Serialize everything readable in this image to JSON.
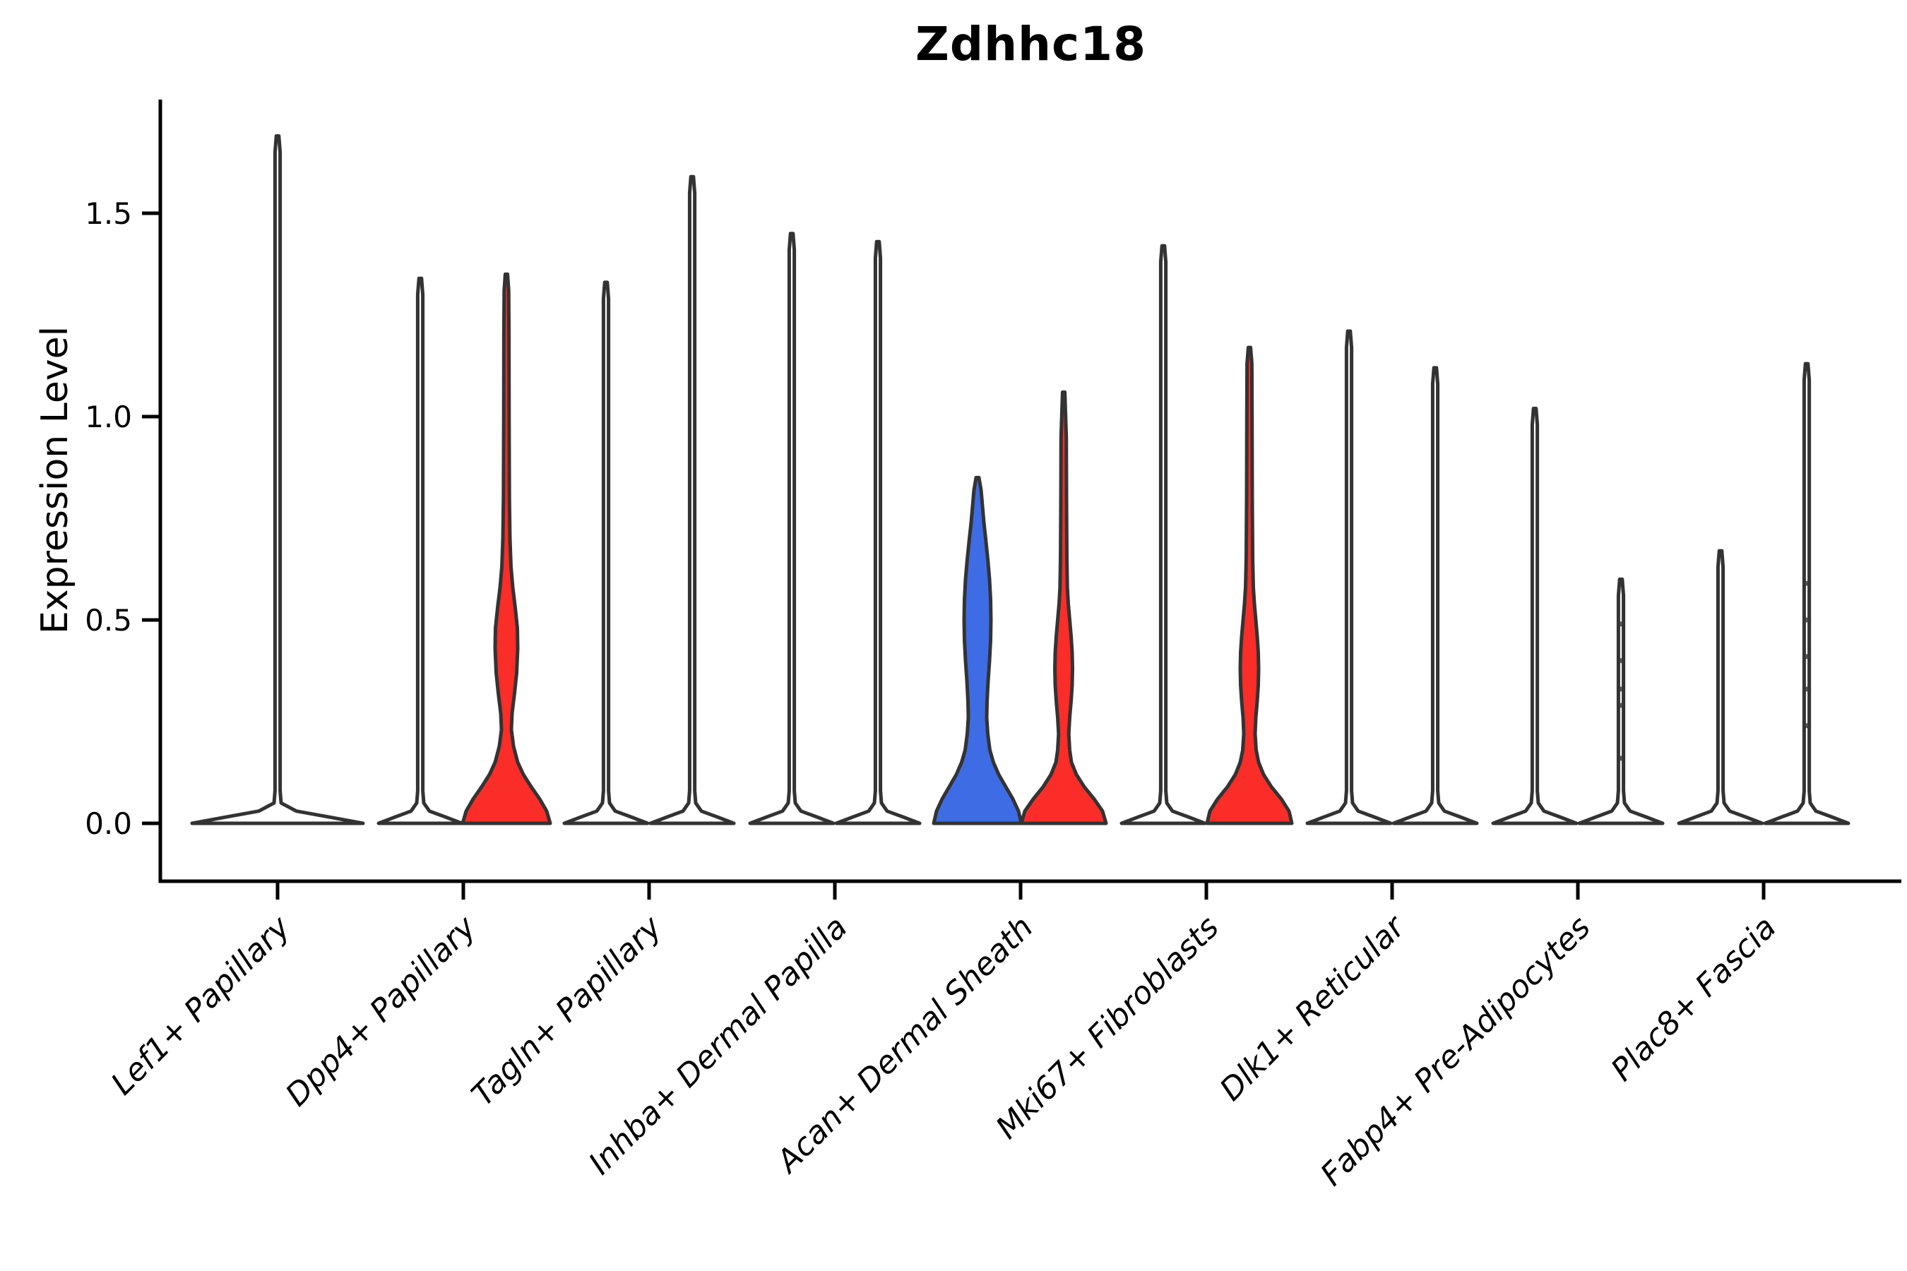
{
  "chart_data": {
    "type": "violin",
    "title": "Zdhhc18",
    "ylabel": "Expression Level",
    "xlabel": "",
    "ylim": [
      -0.14,
      1.78
    ],
    "grid": false,
    "legend": null,
    "yticks": [
      {
        "value": 0.0,
        "label": "0.0"
      },
      {
        "value": 0.5,
        "label": "0.5"
      },
      {
        "value": 1.0,
        "label": "1.0"
      },
      {
        "value": 1.5,
        "label": "1.5"
      }
    ],
    "colors": {
      "highlight_red": "#fa2d28",
      "highlight_blue": "#3e6ce4",
      "violin_outline": "#333333",
      "axis": "#000000",
      "point": "#3a3a3a",
      "white_fill": "#ffffff"
    },
    "categories": [
      {
        "label": "Lef1+ Papillary",
        "violins": [
          {
            "pos": "center",
            "fill": "#ffffff",
            "max": 1.69,
            "kind": "spike",
            "base_half": 121
          }
        ]
      },
      {
        "label": "Dpp4+ Papillary",
        "violins": [
          {
            "pos": "left",
            "fill": "#ffffff",
            "max": 1.34,
            "kind": "spike"
          },
          {
            "pos": "right",
            "fill": "#fa2d28",
            "max": 1.35,
            "kind": "custom",
            "profile": [
              [
                0,
                62
              ],
              [
                0.03,
                57
              ],
              [
                0.06,
                47
              ],
              [
                0.09,
                35
              ],
              [
                0.12,
                24
              ],
              [
                0.15,
                16
              ],
              [
                0.19,
                10
              ],
              [
                0.23,
                7
              ],
              [
                0.27,
                8
              ],
              [
                0.32,
                11.5
              ],
              [
                0.37,
                14.5
              ],
              [
                0.43,
                16
              ],
              [
                0.48,
                15.5
              ],
              [
                0.53,
                12.5
              ],
              [
                0.58,
                9
              ],
              [
                0.63,
                6.5
              ],
              [
                0.7,
                5
              ],
              [
                0.8,
                4.2
              ],
              [
                1.0,
                3.8
              ],
              [
                1.2,
                3.6
              ],
              [
                1.31,
                3.2
              ],
              [
                1.35,
                1.6
              ]
            ]
          }
        ]
      },
      {
        "label": "Tagln+ Papillary",
        "violins": [
          {
            "pos": "left",
            "fill": "#ffffff",
            "max": 1.33,
            "kind": "spike"
          },
          {
            "pos": "right",
            "fill": "#ffffff",
            "max": 1.59,
            "kind": "spike"
          }
        ]
      },
      {
        "label": "Inhba+ Dermal Papilla",
        "violins": [
          {
            "pos": "left",
            "fill": "#ffffff",
            "max": 1.45,
            "kind": "spike"
          },
          {
            "pos": "right",
            "fill": "#ffffff",
            "max": 1.43,
            "kind": "spike"
          }
        ]
      },
      {
        "label": "Acan+ Dermal Sheath",
        "violins": [
          {
            "pos": "left",
            "fill": "#3e6ce4",
            "max": 0.85,
            "kind": "custom",
            "profile": [
              [
                0,
                62
              ],
              [
                0.03,
                58
              ],
              [
                0.06,
                50
              ],
              [
                0.09,
                40
              ],
              [
                0.12,
                30
              ],
              [
                0.15,
                22.5
              ],
              [
                0.18,
                17.5
              ],
              [
                0.22,
                14.5
              ],
              [
                0.26,
                13
              ],
              [
                0.3,
                13.5
              ],
              [
                0.35,
                15
              ],
              [
                0.4,
                17
              ],
              [
                0.45,
                18.5
              ],
              [
                0.5,
                19
              ],
              [
                0.55,
                18.5
              ],
              [
                0.6,
                17
              ],
              [
                0.65,
                14.5
              ],
              [
                0.7,
                11.5
              ],
              [
                0.74,
                9
              ],
              [
                0.78,
                7
              ],
              [
                0.82,
                5
              ],
              [
                0.85,
                2
              ]
            ]
          },
          {
            "pos": "right",
            "fill": "#fa2d28",
            "max": 1.06,
            "kind": "custom",
            "profile": [
              [
                0,
                60
              ],
              [
                0.03,
                55
              ],
              [
                0.06,
                43
              ],
              [
                0.09,
                29
              ],
              [
                0.12,
                18
              ],
              [
                0.15,
                11
              ],
              [
                0.18,
                8.5
              ],
              [
                0.22,
                7.2
              ],
              [
                0.26,
                8.5
              ],
              [
                0.3,
                10.5
              ],
              [
                0.34,
                12
              ],
              [
                0.38,
                12.5
              ],
              [
                0.42,
                12
              ],
              [
                0.46,
                10.5
              ],
              [
                0.5,
                8.5
              ],
              [
                0.54,
                6.5
              ],
              [
                0.58,
                5.2
              ],
              [
                0.65,
                4.5
              ],
              [
                0.8,
                4
              ],
              [
                0.95,
                3.7
              ],
              [
                1.06,
                1.6
              ]
            ]
          }
        ]
      },
      {
        "label": "Mki67+ Fibroblasts",
        "violins": [
          {
            "pos": "left",
            "fill": "#ffffff",
            "max": 1.42,
            "kind": "spike"
          },
          {
            "pos": "right",
            "fill": "#fa2d28",
            "max": 1.17,
            "kind": "custom",
            "profile": [
              [
                0,
                60
              ],
              [
                0.03,
                56
              ],
              [
                0.06,
                45
              ],
              [
                0.09,
                31
              ],
              [
                0.12,
                20
              ],
              [
                0.15,
                13
              ],
              [
                0.18,
                9.5
              ],
              [
                0.22,
                8
              ],
              [
                0.26,
                9
              ],
              [
                0.3,
                11
              ],
              [
                0.34,
                12.5
              ],
              [
                0.38,
                13
              ],
              [
                0.42,
                12.5
              ],
              [
                0.46,
                11
              ],
              [
                0.5,
                9
              ],
              [
                0.54,
                7
              ],
              [
                0.58,
                5.5
              ],
              [
                0.65,
                4.6
              ],
              [
                0.8,
                4
              ],
              [
                1.0,
                3.7
              ],
              [
                1.13,
                3.4
              ],
              [
                1.17,
                1.6
              ]
            ]
          }
        ]
      },
      {
        "label": "Dlk1+ Reticular",
        "violins": [
          {
            "pos": "left",
            "fill": "#ffffff",
            "max": 1.21,
            "kind": "spike"
          },
          {
            "pos": "right",
            "fill": "#ffffff",
            "max": 1.12,
            "kind": "spike"
          }
        ]
      },
      {
        "label": "Fabp4+ Pre-Adipocytes",
        "violins": [
          {
            "pos": "left",
            "fill": "#ffffff",
            "max": 1.02,
            "kind": "spike"
          },
          {
            "pos": "right",
            "fill": "#ffffff",
            "max": 0.6,
            "kind": "spike",
            "points": [
              0.16,
              0.29,
              0.33,
              0.4,
              0.49
            ]
          }
        ]
      },
      {
        "label": "Plac8+ Fascia",
        "violins": [
          {
            "pos": "left",
            "fill": "#ffffff",
            "max": 0.67,
            "kind": "spike"
          },
          {
            "pos": "right",
            "fill": "#ffffff",
            "max": 1.13,
            "kind": "spike",
            "points": [
              0.24,
              0.33,
              0.41,
              0.5,
              0.59
            ]
          }
        ]
      }
    ]
  }
}
